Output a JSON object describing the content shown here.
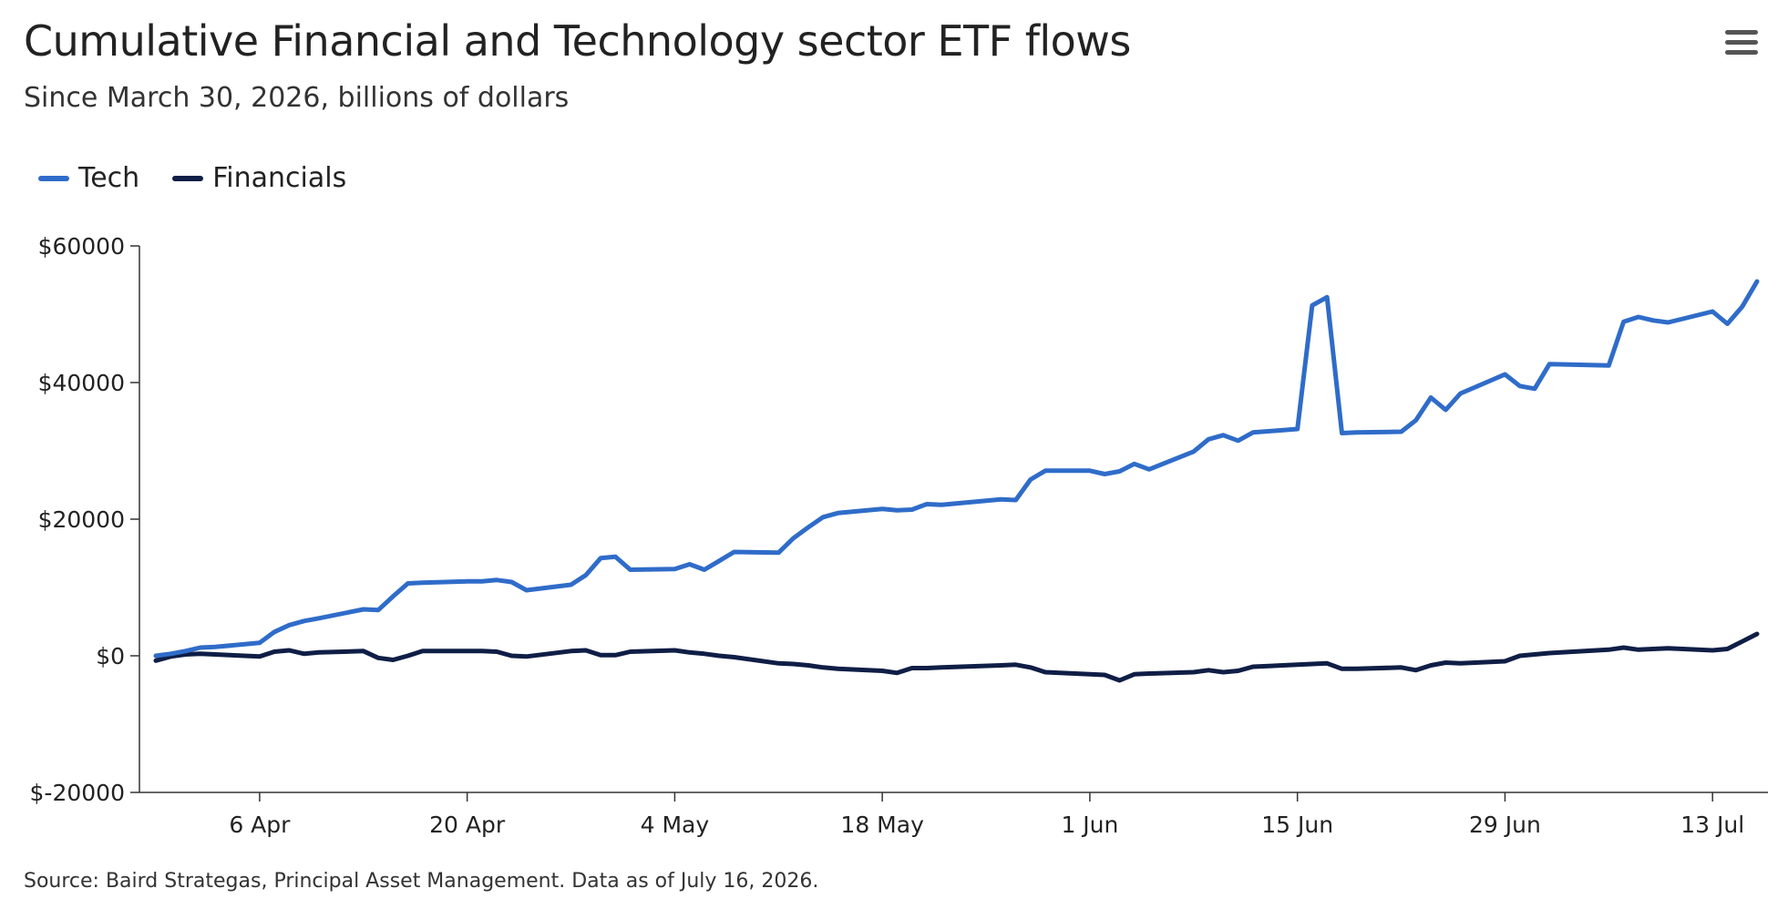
{
  "title": "Cumulative Financial and Technology sector ETF flows",
  "subtitle": "Since March 30, 2026, billions of dollars",
  "source": "Source: Baird Strategas, Principal Asset Management. Data as of July 16, 2026.",
  "menu_icon": "hamburger-menu-icon",
  "legend": [
    {
      "label": "Tech",
      "color": "#2f6cc9"
    },
    {
      "label": "Financials",
      "color": "#0f1e46"
    }
  ],
  "chart_data": {
    "type": "line",
    "title": "Cumulative Financial and Technology sector ETF flows",
    "subtitle": "Since March 30, 2026, billions of dollars",
    "xlabel": "",
    "ylabel": "",
    "ylim": [
      -20000,
      60000
    ],
    "yticks": [
      60000,
      40000,
      20000,
      0,
      -20000
    ],
    "ytick_labels": [
      "$60000",
      "$40000",
      "$20000",
      "$0",
      "$-20000"
    ],
    "xlim": [
      "2026-03-30",
      "2026-07-16"
    ],
    "xticks": [
      "2026-04-06",
      "2026-04-20",
      "2026-05-04",
      "2026-05-18",
      "2026-06-01",
      "2026-06-15",
      "2026-06-29",
      "2026-07-13"
    ],
    "xtick_labels": [
      "6 Apr",
      "20 Apr",
      "4 May",
      "18 May",
      "1 Jun",
      "15 Jun",
      "29 Jun",
      "13 Jul"
    ],
    "grid": false,
    "legend_position": "top-left",
    "x": [
      "2026-03-30",
      "2026-03-31",
      "2026-04-01",
      "2026-04-02",
      "2026-04-03",
      "2026-04-06",
      "2026-04-07",
      "2026-04-08",
      "2026-04-09",
      "2026-04-10",
      "2026-04-13",
      "2026-04-14",
      "2026-04-15",
      "2026-04-16",
      "2026-04-17",
      "2026-04-20",
      "2026-04-21",
      "2026-04-22",
      "2026-04-23",
      "2026-04-24",
      "2026-04-27",
      "2026-04-28",
      "2026-04-29",
      "2026-04-30",
      "2026-05-01",
      "2026-05-04",
      "2026-05-05",
      "2026-05-06",
      "2026-05-07",
      "2026-05-08",
      "2026-05-11",
      "2026-05-12",
      "2026-05-13",
      "2026-05-14",
      "2026-05-15",
      "2026-05-18",
      "2026-05-19",
      "2026-05-20",
      "2026-05-21",
      "2026-05-22",
      "2026-05-26",
      "2026-05-27",
      "2026-05-28",
      "2026-05-29",
      "2026-06-01",
      "2026-06-02",
      "2026-06-03",
      "2026-06-04",
      "2026-06-05",
      "2026-06-08",
      "2026-06-09",
      "2026-06-10",
      "2026-06-11",
      "2026-06-12",
      "2026-06-15",
      "2026-06-16",
      "2026-06-17",
      "2026-06-18",
      "2026-06-19",
      "2026-06-22",
      "2026-06-23",
      "2026-06-24",
      "2026-06-25",
      "2026-06-26",
      "2026-06-29",
      "2026-06-30",
      "2026-07-01",
      "2026-07-02",
      "2026-07-06",
      "2026-07-07",
      "2026-07-08",
      "2026-07-09",
      "2026-07-10",
      "2026-07-13",
      "2026-07-14",
      "2026-07-15",
      "2026-07-16"
    ],
    "series": [
      {
        "name": "Tech",
        "color": "#2f6cc9",
        "values": [
          0,
          300,
          700,
          1200,
          1300,
          1900,
          3500,
          4500,
          5100,
          5500,
          6800,
          6700,
          8700,
          10600,
          10700,
          10900,
          10900,
          11100,
          10800,
          9600,
          10400,
          11800,
          14300,
          14500,
          12600,
          12700,
          13400,
          12600,
          13900,
          15200,
          15100,
          17200,
          18800,
          20300,
          20900,
          21500,
          21300,
          21400,
          22200,
          22100,
          22900,
          22800,
          25800,
          27100,
          27100,
          26600,
          27000,
          28100,
          27300,
          29900,
          31700,
          32300,
          31500,
          32700,
          33200,
          51300,
          52500,
          32600,
          32700,
          32800,
          34500,
          37800,
          36000,
          38400,
          41200,
          39500,
          39100,
          42700,
          42500,
          48900,
          49600,
          49100,
          48800,
          50400,
          48600,
          51100,
          54800
        ]
      },
      {
        "name": "Financials",
        "color": "#0f1e46",
        "values": [
          -700,
          -100,
          200,
          300,
          200,
          -100,
          600,
          800,
          300,
          500,
          700,
          -300,
          -600,
          0,
          700,
          700,
          700,
          600,
          0,
          -100,
          700,
          800,
          100,
          100,
          600,
          800,
          500,
          300,
          0,
          -200,
          -1100,
          -1200,
          -1400,
          -1700,
          -1900,
          -2200,
          -2500,
          -1800,
          -1800,
          -1700,
          -1400,
          -1300,
          -1700,
          -2400,
          -2700,
          -2800,
          -3600,
          -2700,
          -2600,
          -2400,
          -2100,
          -2400,
          -2200,
          -1600,
          -1300,
          -1200,
          -1100,
          -1900,
          -1900,
          -1700,
          -2100,
          -1400,
          -1000,
          -1100,
          -800,
          0,
          200,
          400,
          900,
          1200,
          900,
          1000,
          1100,
          800,
          1000,
          2100,
          3200
        ]
      }
    ]
  }
}
